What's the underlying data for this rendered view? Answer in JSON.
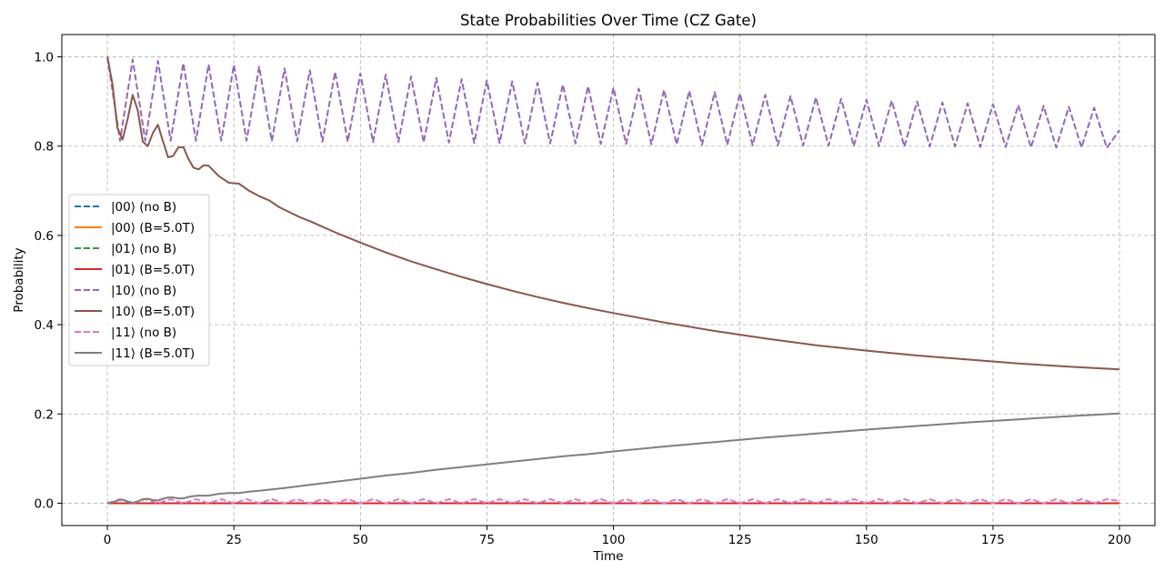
{
  "chart_data": {
    "type": "line",
    "title": "State Probabilities Over Time (CZ Gate)",
    "xlabel": "Time",
    "ylabel": "Probability",
    "xlim": [
      -9,
      207
    ],
    "ylim": [
      -0.05,
      1.05
    ],
    "xticks": [
      0,
      25,
      50,
      75,
      100,
      125,
      150,
      175,
      200
    ],
    "yticks": [
      0.0,
      0.2,
      0.4,
      0.6,
      0.8,
      1.0
    ],
    "ytick_labels": [
      "0.0",
      "0.2",
      "0.4",
      "0.6",
      "0.8",
      "1.0"
    ],
    "grid": true,
    "legend_position": "center-left",
    "series": [
      {
        "name": "|00⟩ (no B)",
        "color": "#1f77b4",
        "style": "dashed",
        "x": [
          0,
          200
        ],
        "y": [
          0,
          0
        ]
      },
      {
        "name": "|00⟩ (B=5.0T)",
        "color": "#ff7f0e",
        "style": "solid",
        "x": [
          0,
          200
        ],
        "y": [
          0,
          0
        ]
      },
      {
        "name": "|01⟩ (no B)",
        "color": "#2ca02c",
        "style": "dashed",
        "x": [
          0,
          200
        ],
        "y": [
          0,
          0
        ]
      },
      {
        "name": "|01⟩ (B=5.0T)",
        "color": "#d62728",
        "style": "solid",
        "x": [
          0,
          200
        ],
        "y": [
          0,
          0
        ]
      },
      {
        "name": "|10⟩ (no B)",
        "color": "#9467bd",
        "style": "dashed",
        "x": [
          0,
          2.5,
          5,
          7.5,
          10,
          12.5,
          15,
          17.5,
          20,
          22.5,
          25,
          27.5,
          30,
          32.5,
          35,
          37.5,
          40,
          42.5,
          45,
          47.5,
          50,
          52.5,
          55,
          57.5,
          60,
          62.5,
          65,
          67.5,
          70,
          72.5,
          75,
          77.5,
          80,
          82.5,
          85,
          87.5,
          90,
          92.5,
          95,
          97.5,
          100,
          102.5,
          105,
          107.5,
          110,
          112.5,
          115,
          117.5,
          120,
          122.5,
          125,
          127.5,
          130,
          132.5,
          135,
          137.5,
          140,
          142.5,
          145,
          147.5,
          150,
          152.5,
          155,
          157.5,
          160,
          162.5,
          165,
          167.5,
          170,
          172.5,
          175,
          177.5,
          180,
          182.5,
          185,
          187.5,
          190,
          192.5,
          195,
          197.5,
          200
        ],
        "y": [
          1.0,
          0.812,
          0.994,
          0.812,
          0.991,
          0.812,
          0.986,
          0.812,
          0.983,
          0.812,
          0.982,
          0.812,
          0.978,
          0.811,
          0.974,
          0.811,
          0.97,
          0.81,
          0.966,
          0.81,
          0.963,
          0.809,
          0.96,
          0.809,
          0.956,
          0.808,
          0.953,
          0.808,
          0.95,
          0.807,
          0.947,
          0.807,
          0.945,
          0.806,
          0.942,
          0.806,
          0.938,
          0.806,
          0.934,
          0.805,
          0.931,
          0.805,
          0.929,
          0.804,
          0.926,
          0.804,
          0.924,
          0.803,
          0.921,
          0.803,
          0.918,
          0.802,
          0.915,
          0.802,
          0.912,
          0.801,
          0.909,
          0.801,
          0.906,
          0.8,
          0.904,
          0.8,
          0.902,
          0.799,
          0.9,
          0.799,
          0.898,
          0.799,
          0.896,
          0.798,
          0.894,
          0.798,
          0.892,
          0.797,
          0.89,
          0.797,
          0.888,
          0.797,
          0.886,
          0.796,
          0.836
        ]
      },
      {
        "name": "|10⟩ (B=5.0T)",
        "color": "#8c564b",
        "style": "solid",
        "x": [
          0,
          1,
          2,
          3,
          4,
          5,
          6,
          7,
          8,
          9,
          10,
          11,
          12,
          13,
          14,
          15,
          16,
          17,
          18,
          19,
          20,
          22,
          24,
          26,
          28,
          30,
          32,
          34,
          36,
          38,
          40,
          45,
          50,
          55,
          60,
          65,
          70,
          75,
          80,
          85,
          90,
          95,
          100,
          110,
          120,
          130,
          140,
          150,
          160,
          170,
          180,
          190,
          200
        ],
        "y": [
          1.0,
          0.94,
          0.84,
          0.815,
          0.86,
          0.915,
          0.88,
          0.81,
          0.8,
          0.83,
          0.848,
          0.81,
          0.775,
          0.778,
          0.797,
          0.798,
          0.772,
          0.752,
          0.748,
          0.757,
          0.756,
          0.733,
          0.718,
          0.716,
          0.7,
          0.688,
          0.678,
          0.663,
          0.652,
          0.641,
          0.632,
          0.607,
          0.584,
          0.562,
          0.542,
          0.524,
          0.507,
          0.491,
          0.476,
          0.462,
          0.449,
          0.437,
          0.426,
          0.405,
          0.386,
          0.369,
          0.354,
          0.342,
          0.331,
          0.322,
          0.313,
          0.306,
          0.3
        ]
      },
      {
        "name": "|11⟩ (no B)",
        "color": "#e377c2",
        "style": "dashed",
        "x": [
          0,
          2.5,
          5,
          7.5,
          10,
          12.5,
          15,
          17.5,
          20,
          22.5,
          25,
          27.5,
          30,
          32.5,
          35,
          37.5,
          40,
          42.5,
          45,
          47.5,
          50,
          52.5,
          55,
          57.5,
          60,
          62.5,
          65,
          67.5,
          70,
          72.5,
          75,
          77.5,
          80,
          82.5,
          85,
          87.5,
          90,
          92.5,
          95,
          97.5,
          100,
          102.5,
          105,
          107.5,
          110,
          112.5,
          115,
          117.5,
          120,
          122.5,
          125,
          127.5,
          130,
          132.5,
          135,
          137.5,
          140,
          142.5,
          145,
          147.5,
          150,
          152.5,
          155,
          157.5,
          160,
          162.5,
          165,
          167.5,
          170,
          172.5,
          175,
          177.5,
          180,
          182.5,
          185,
          187.5,
          190,
          192.5,
          195,
          197.5,
          200
        ],
        "y": [
          0,
          0.009,
          0,
          0.009,
          0,
          0.009,
          0,
          0.009,
          0,
          0.009,
          0,
          0.009,
          0,
          0.009,
          0,
          0.009,
          0,
          0.009,
          0,
          0.009,
          0,
          0.009,
          0,
          0.009,
          0,
          0.009,
          0,
          0.009,
          0,
          0.009,
          0,
          0.009,
          0,
          0.009,
          0,
          0.009,
          0,
          0.009,
          0,
          0.009,
          0,
          0.009,
          0,
          0.009,
          0,
          0.009,
          0,
          0.009,
          0,
          0.009,
          0,
          0.009,
          0,
          0.009,
          0,
          0.009,
          0,
          0.009,
          0,
          0.009,
          0,
          0.009,
          0,
          0.009,
          0,
          0.009,
          0,
          0.009,
          0,
          0.009,
          0,
          0.009,
          0,
          0.009,
          0,
          0.009,
          0,
          0.009,
          0,
          0.009,
          0.005
        ]
      },
      {
        "name": "|11⟩ (B=5.0T)",
        "color": "#7f7f7f",
        "style": "solid",
        "x": [
          0,
          1,
          2,
          3,
          4,
          5,
          6,
          7,
          8,
          9,
          10,
          11,
          12,
          13,
          14,
          15,
          16,
          17,
          18,
          19,
          20,
          22,
          24,
          26,
          28,
          30,
          35,
          40,
          45,
          50,
          55,
          60,
          65,
          70,
          75,
          80,
          85,
          90,
          95,
          100,
          110,
          120,
          130,
          140,
          150,
          160,
          170,
          180,
          190,
          200
        ],
        "y": [
          0,
          0.002,
          0.006,
          0.008,
          0.004,
          0.001,
          0.004,
          0.009,
          0.01,
          0.007,
          0.006,
          0.01,
          0.013,
          0.013,
          0.011,
          0.011,
          0.014,
          0.016,
          0.017,
          0.017,
          0.017,
          0.021,
          0.023,
          0.023,
          0.026,
          0.028,
          0.034,
          0.041,
          0.048,
          0.055,
          0.062,
          0.068,
          0.075,
          0.081,
          0.087,
          0.093,
          0.099,
          0.105,
          0.11,
          0.116,
          0.127,
          0.137,
          0.147,
          0.156,
          0.165,
          0.173,
          0.181,
          0.188,
          0.195,
          0.201
        ]
      }
    ]
  }
}
